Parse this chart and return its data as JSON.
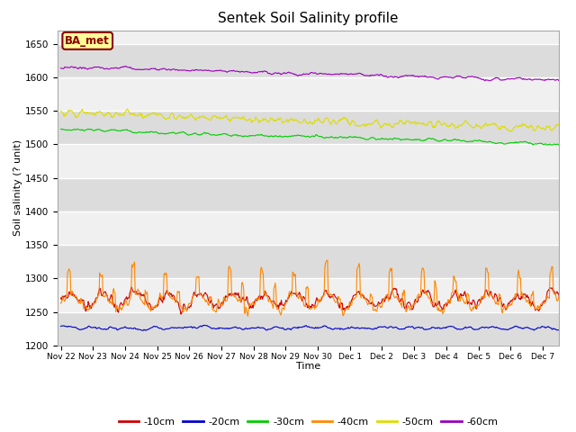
{
  "title": "Sentek Soil Salinity profile",
  "xlabel": "Time",
  "ylabel": "Soil salinity (? unit)",
  "ylim": [
    1200,
    1670
  ],
  "annotation": "BA_met",
  "legend_labels": [
    "-10cm",
    "-20cm",
    "-30cm",
    "-40cm",
    "-50cm",
    "-60cm"
  ],
  "line_colors": [
    "#cc0000",
    "#0000cc",
    "#00cc00",
    "#ff8800",
    "#dddd00",
    "#9900bb"
  ],
  "background_color": "#ffffff",
  "plot_bg_light": "#f0f0f0",
  "plot_bg_dark": "#dcdcdc",
  "date_labels": [
    "Nov 22",
    "Nov 23",
    "Nov 24",
    "Nov 25",
    "Nov 26",
    "Nov 27",
    "Nov 28",
    "Nov 29",
    "Nov 30",
    "Dec 1",
    "Dec 2",
    "Dec 3",
    "Dec 4",
    "Dec 5",
    "Dec 6",
    "Dec 7"
  ]
}
